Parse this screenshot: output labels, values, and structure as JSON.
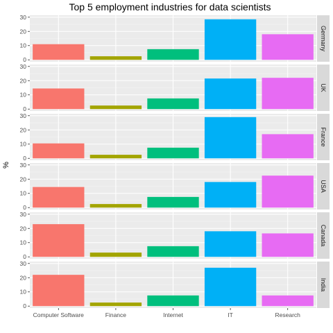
{
  "chart_data": {
    "type": "bar",
    "title": "Top 5 employment industries for data scientists",
    "ylabel": "%",
    "xlabel": "",
    "categories": [
      "Computer Software",
      "Finance",
      "Internet",
      "IT",
      "Research"
    ],
    "category_colors": [
      "#F8766D",
      "#A3A500",
      "#00BF7D",
      "#00B0F6",
      "#E76BF3"
    ],
    "ylim": [
      0,
      30
    ],
    "yticks": [
      0,
      10,
      20,
      30
    ],
    "grid": true,
    "legend": "none",
    "facets": [
      {
        "name": "Germany",
        "values": [
          11,
          2.5,
          7.5,
          28.5,
          18
        ]
      },
      {
        "name": "UK",
        "values": [
          14.5,
          2.5,
          7.5,
          21.5,
          22
        ]
      },
      {
        "name": "France",
        "values": [
          10.5,
          2.5,
          7.5,
          29,
          17
        ]
      },
      {
        "name": "USA",
        "values": [
          14.5,
          2.5,
          7.5,
          18,
          22.5
        ]
      },
      {
        "name": "Canada",
        "values": [
          23,
          3,
          7.5,
          18,
          16.5
        ]
      },
      {
        "name": "India",
        "values": [
          22,
          2.5,
          7.5,
          27,
          7.5
        ]
      }
    ]
  }
}
